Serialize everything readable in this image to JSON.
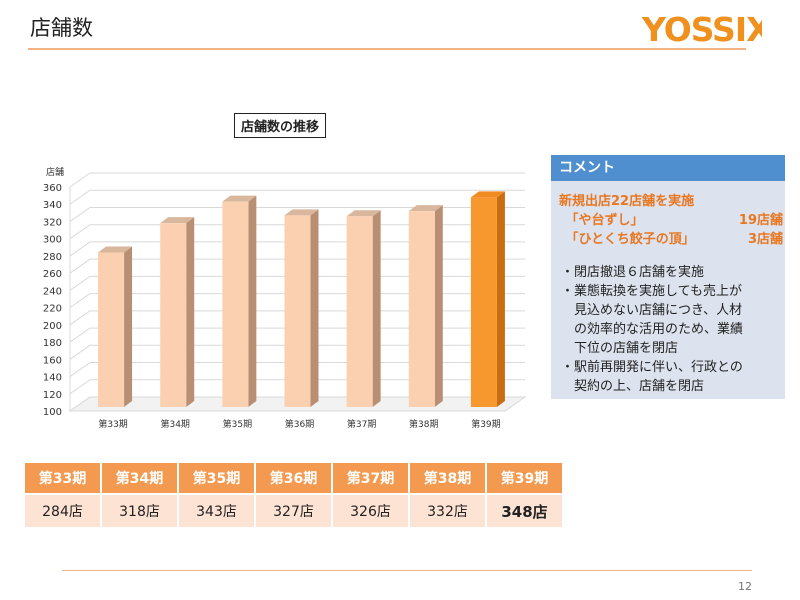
{
  "header": {
    "title": "店舗数",
    "logo_text": "YOSSIX"
  },
  "chart_title": "店舗数の推移",
  "colors": {
    "accent": "#f39a50",
    "bar": "#fbd0b0",
    "bar_highlight": "#f7982e",
    "comment_head": "#4f8fcf",
    "comment_bg": "#dde3ee",
    "highlight_text": "#e87722"
  },
  "chart_data": {
    "type": "bar",
    "title": "店舗数の推移",
    "ylabel": "店舗",
    "xlabel": "",
    "categories": [
      "第33期",
      "第34期",
      "第35期",
      "第36期",
      "第37期",
      "第38期",
      "第39期"
    ],
    "values": [
      284,
      318,
      343,
      327,
      326,
      332,
      348
    ],
    "ylim": [
      100,
      360
    ],
    "yticks": [
      100,
      120,
      140,
      160,
      180,
      200,
      220,
      240,
      260,
      280,
      300,
      320,
      340,
      360
    ],
    "highlight_index": 6,
    "style": "3d-bar",
    "grid": true
  },
  "table": {
    "headers": [
      "第33期",
      "第34期",
      "第35期",
      "第36期",
      "第37期",
      "第38期",
      "第39期"
    ],
    "values": [
      "284店",
      "318店",
      "343店",
      "327店",
      "326店",
      "332店",
      "348店"
    ]
  },
  "comment": {
    "title": "コメント",
    "highlight_lines": [
      {
        "left": "新規出店22店舗を実施",
        "right": ""
      },
      {
        "left": "　「や台ずし」",
        "right": "19店舗"
      },
      {
        "left": "　「ひとくち餃子の頂」",
        "right": "3店舗"
      }
    ],
    "bullets": [
      "・閉店撤退６店舗を実施",
      "・業態転換を実施しても売上が",
      "　見込めない店舗につき、人材",
      "　の効率的な活用のため、業績",
      "　下位の店舗を閉店",
      "・駅前再開発に伴い、行政との",
      "　契約の上、店舗を閉店"
    ]
  },
  "page_number": "12"
}
